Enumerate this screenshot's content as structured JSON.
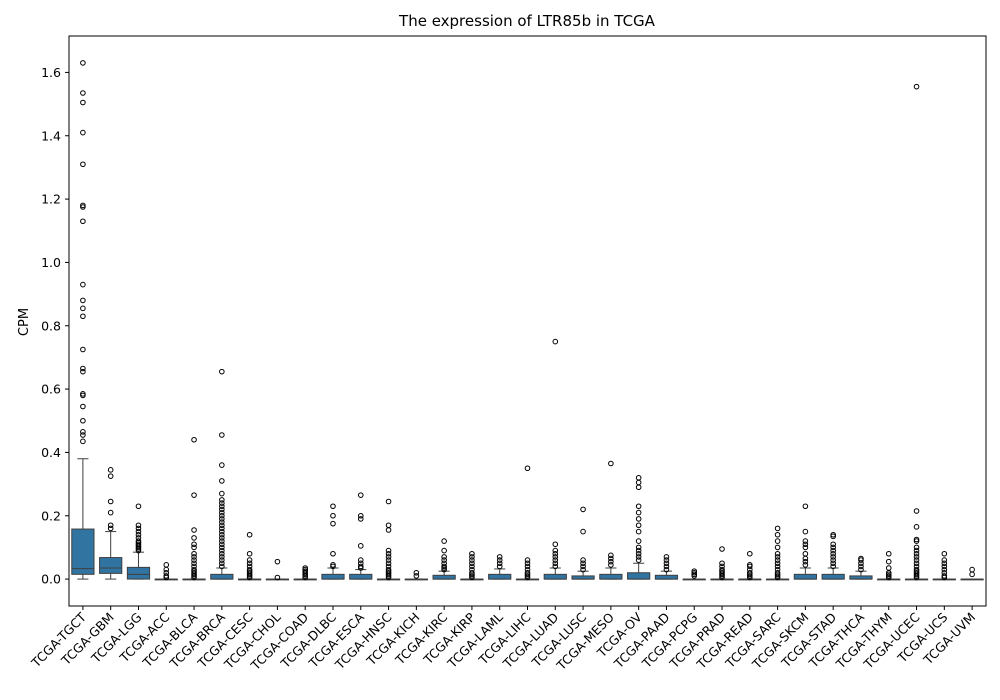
{
  "chart_data": {
    "type": "box",
    "title": "The expression of LTR85b in TCGA",
    "xlabel": "",
    "ylabel": "CPM",
    "ylim": [
      -0.085,
      1.715
    ],
    "yticks": [
      0.0,
      0.2,
      0.4,
      0.6,
      0.8,
      1.0,
      1.2,
      1.4,
      1.6
    ],
    "box_color": "#3274a1",
    "categories": [
      "TCGA-TGCT",
      "TCGA-GBM",
      "TCGA-LGG",
      "TCGA-ACC",
      "TCGA-BLCA",
      "TCGA-BRCA",
      "TCGA-CESC",
      "TCGA-CHOL",
      "TCGA-COAD",
      "TCGA-DLBC",
      "TCGA-ESCA",
      "TCGA-HNSC",
      "TCGA-KICH",
      "TCGA-KIRC",
      "TCGA-KIRP",
      "TCGA-LAML",
      "TCGA-LIHC",
      "TCGA-LUAD",
      "TCGA-LUSC",
      "TCGA-MESO",
      "TCGA-OV",
      "TCGA-PAAD",
      "TCGA-PCPG",
      "TCGA-PRAD",
      "TCGA-READ",
      "TCGA-SARC",
      "TCGA-SKCM",
      "TCGA-STAD",
      "TCGA-THCA",
      "TCGA-THYM",
      "TCGA-UCEC",
      "TCGA-UCS",
      "TCGA-UVM"
    ],
    "boxes": [
      {
        "min": 0.0,
        "q1": 0.015,
        "median": 0.033,
        "q3": 0.158,
        "max": 0.38,
        "outliers": [
          0.435,
          0.455,
          0.465,
          0.5,
          0.545,
          0.58,
          0.585,
          0.655,
          0.665,
          0.725,
          0.83,
          0.855,
          0.88,
          0.93,
          1.13,
          1.175,
          1.18,
          1.31,
          1.41,
          1.505,
          1.535,
          1.63
        ]
      },
      {
        "min": 0.0,
        "q1": 0.018,
        "median": 0.035,
        "q3": 0.068,
        "max": 0.15,
        "outliers": [
          0.16,
          0.17,
          0.21,
          0.245,
          0.325,
          0.345
        ]
      },
      {
        "min": 0.0,
        "q1": 0.0,
        "median": 0.015,
        "q3": 0.037,
        "max": 0.085,
        "outliers": [
          0.09,
          0.095,
          0.1,
          0.105,
          0.11,
          0.115,
          0.12,
          0.13,
          0.14,
          0.15,
          0.16,
          0.17,
          0.23
        ]
      },
      {
        "min": 0.0,
        "q1": 0.0,
        "median": 0.0,
        "q3": 0.0,
        "max": 0.0,
        "outliers": [
          0.005,
          0.01,
          0.02,
          0.03,
          0.045
        ]
      },
      {
        "min": 0.0,
        "q1": 0.0,
        "median": 0.0,
        "q3": 0.0,
        "max": 0.0,
        "outliers": [
          0.005,
          0.01,
          0.015,
          0.02,
          0.025,
          0.03,
          0.04,
          0.05,
          0.06,
          0.07,
          0.08,
          0.1,
          0.11,
          0.13,
          0.155,
          0.265,
          0.44
        ]
      },
      {
        "min": 0.0,
        "q1": 0.0,
        "median": 0.0,
        "q3": 0.015,
        "max": 0.035,
        "outliers": [
          0.04,
          0.05,
          0.06,
          0.07,
          0.08,
          0.09,
          0.1,
          0.11,
          0.12,
          0.13,
          0.14,
          0.15,
          0.16,
          0.17,
          0.18,
          0.19,
          0.2,
          0.21,
          0.22,
          0.23,
          0.24,
          0.25,
          0.27,
          0.31,
          0.36,
          0.455,
          0.655
        ]
      },
      {
        "min": 0.0,
        "q1": 0.0,
        "median": 0.0,
        "q3": 0.0,
        "max": 0.0,
        "outliers": [
          0.005,
          0.01,
          0.015,
          0.02,
          0.025,
          0.03,
          0.04,
          0.05,
          0.06,
          0.08,
          0.14
        ]
      },
      {
        "min": 0.0,
        "q1": 0.0,
        "median": 0.0,
        "q3": 0.0,
        "max": 0.0,
        "outliers": [
          0.005,
          0.055
        ]
      },
      {
        "min": 0.0,
        "q1": 0.0,
        "median": 0.0,
        "q3": 0.0,
        "max": 0.0,
        "outliers": [
          0.005,
          0.01,
          0.015,
          0.02,
          0.025,
          0.03,
          0.035
        ]
      },
      {
        "min": 0.0,
        "q1": 0.0,
        "median": 0.0,
        "q3": 0.015,
        "max": 0.035,
        "outliers": [
          0.04,
          0.045,
          0.08,
          0.175,
          0.2,
          0.23
        ]
      },
      {
        "min": 0.0,
        "q1": 0.0,
        "median": 0.0,
        "q3": 0.015,
        "max": 0.03,
        "outliers": [
          0.035,
          0.04,
          0.05,
          0.06,
          0.105,
          0.19,
          0.2,
          0.265
        ]
      },
      {
        "min": 0.0,
        "q1": 0.0,
        "median": 0.0,
        "q3": 0.0,
        "max": 0.0,
        "outliers": [
          0.005,
          0.01,
          0.015,
          0.02,
          0.025,
          0.03,
          0.04,
          0.05,
          0.06,
          0.07,
          0.08,
          0.09,
          0.155,
          0.17,
          0.245
        ]
      },
      {
        "min": 0.0,
        "q1": 0.0,
        "median": 0.0,
        "q3": 0.0,
        "max": 0.0,
        "outliers": [
          0.01,
          0.02
        ]
      },
      {
        "min": 0.0,
        "q1": 0.0,
        "median": 0.0,
        "q3": 0.012,
        "max": 0.025,
        "outliers": [
          0.03,
          0.035,
          0.04,
          0.05,
          0.06,
          0.07,
          0.09,
          0.12
        ]
      },
      {
        "min": 0.0,
        "q1": 0.0,
        "median": 0.0,
        "q3": 0.0,
        "max": 0.0,
        "outliers": [
          0.005,
          0.01,
          0.015,
          0.02,
          0.03,
          0.04,
          0.05,
          0.06,
          0.07,
          0.08
        ]
      },
      {
        "min": 0.0,
        "q1": 0.0,
        "median": 0.0,
        "q3": 0.015,
        "max": 0.032,
        "outliers": [
          0.04,
          0.05,
          0.06,
          0.07
        ]
      },
      {
        "min": 0.0,
        "q1": 0.0,
        "median": 0.0,
        "q3": 0.0,
        "max": 0.0,
        "outliers": [
          0.005,
          0.01,
          0.015,
          0.02,
          0.03,
          0.04,
          0.05,
          0.06,
          0.35
        ]
      },
      {
        "min": 0.0,
        "q1": 0.0,
        "median": 0.0,
        "q3": 0.015,
        "max": 0.035,
        "outliers": [
          0.04,
          0.05,
          0.06,
          0.07,
          0.08,
          0.09,
          0.11,
          0.75
        ]
      },
      {
        "min": 0.0,
        "q1": 0.0,
        "median": 0.0,
        "q3": 0.01,
        "max": 0.025,
        "outliers": [
          0.03,
          0.04,
          0.05,
          0.06,
          0.15,
          0.22
        ]
      },
      {
        "min": 0.0,
        "q1": 0.0,
        "median": 0.0,
        "q3": 0.015,
        "max": 0.035,
        "outliers": [
          0.045,
          0.055,
          0.065,
          0.075,
          0.365
        ]
      },
      {
        "min": 0.0,
        "q1": 0.0,
        "median": 0.0,
        "q3": 0.02,
        "max": 0.05,
        "outliers": [
          0.06,
          0.07,
          0.08,
          0.09,
          0.1,
          0.12,
          0.15,
          0.17,
          0.19,
          0.21,
          0.23,
          0.29,
          0.305,
          0.32
        ]
      },
      {
        "min": 0.0,
        "q1": 0.0,
        "median": 0.0,
        "q3": 0.012,
        "max": 0.025,
        "outliers": [
          0.03,
          0.04,
          0.05,
          0.06,
          0.07
        ]
      },
      {
        "min": 0.0,
        "q1": 0.0,
        "median": 0.0,
        "q3": 0.0,
        "max": 0.0,
        "outliers": [
          0.01,
          0.015,
          0.02,
          0.025
        ]
      },
      {
        "min": 0.0,
        "q1": 0.0,
        "median": 0.0,
        "q3": 0.0,
        "max": 0.0,
        "outliers": [
          0.005,
          0.01,
          0.015,
          0.02,
          0.025,
          0.03,
          0.04,
          0.05,
          0.095
        ]
      },
      {
        "min": 0.0,
        "q1": 0.0,
        "median": 0.0,
        "q3": 0.0,
        "max": 0.0,
        "outliers": [
          0.005,
          0.01,
          0.015,
          0.02,
          0.03,
          0.04,
          0.045,
          0.08
        ]
      },
      {
        "min": 0.0,
        "q1": 0.0,
        "median": 0.0,
        "q3": 0.0,
        "max": 0.0,
        "outliers": [
          0.005,
          0.01,
          0.015,
          0.02,
          0.03,
          0.04,
          0.05,
          0.06,
          0.07,
          0.08,
          0.1,
          0.12,
          0.14,
          0.16
        ]
      },
      {
        "min": 0.0,
        "q1": 0.0,
        "median": 0.0,
        "q3": 0.015,
        "max": 0.035,
        "outliers": [
          0.045,
          0.055,
          0.065,
          0.08,
          0.1,
          0.11,
          0.12,
          0.15,
          0.23
        ]
      },
      {
        "min": 0.0,
        "q1": 0.0,
        "median": 0.0,
        "q3": 0.015,
        "max": 0.035,
        "outliers": [
          0.04,
          0.05,
          0.06,
          0.07,
          0.08,
          0.09,
          0.1,
          0.11,
          0.135,
          0.14
        ]
      },
      {
        "min": 0.0,
        "q1": 0.0,
        "median": 0.0,
        "q3": 0.01,
        "max": 0.025,
        "outliers": [
          0.03,
          0.04,
          0.05,
          0.06,
          0.065
        ]
      },
      {
        "min": 0.0,
        "q1": 0.0,
        "median": 0.0,
        "q3": 0.0,
        "max": 0.0,
        "outliers": [
          0.005,
          0.01,
          0.015,
          0.02,
          0.035,
          0.055,
          0.08
        ]
      },
      {
        "min": 0.0,
        "q1": 0.0,
        "median": 0.0,
        "q3": 0.0,
        "max": 0.0,
        "outliers": [
          0.005,
          0.01,
          0.015,
          0.02,
          0.025,
          0.03,
          0.04,
          0.05,
          0.06,
          0.07,
          0.08,
          0.09,
          0.1,
          0.12,
          0.125,
          0.165,
          0.215,
          1.555
        ]
      },
      {
        "min": 0.0,
        "q1": 0.0,
        "median": 0.0,
        "q3": 0.0,
        "max": 0.0,
        "outliers": [
          0.005,
          0.01,
          0.02,
          0.03,
          0.04,
          0.05,
          0.06,
          0.08
        ]
      },
      {
        "min": 0.0,
        "q1": 0.0,
        "median": 0.0,
        "q3": 0.0,
        "max": 0.0,
        "outliers": [
          0.015,
          0.03
        ]
      }
    ]
  }
}
